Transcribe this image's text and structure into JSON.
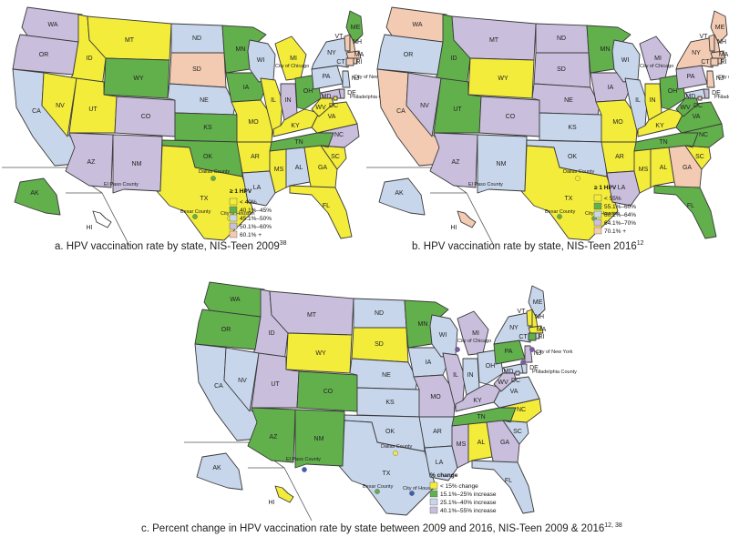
{
  "colors": {
    "yellow": "#f4ec3a",
    "green": "#62b04c",
    "lightblue": "#c8d6ec",
    "lavender": "#c9bedc",
    "peach": "#f3cbb3",
    "white": "#ffffff",
    "bluedot": "#3d5fb0",
    "greendot": "#62b04c",
    "purpledot": "#7a5aa8"
  },
  "maps": [
    {
      "id": "a",
      "caption": "a. HPV vaccination rate by state, NIS-Teen 2009",
      "caption_ref": "38",
      "legend": {
        "title": "≥ 1 HPV",
        "items": [
          {
            "label": "< 40%",
            "color": "#f4ec3a"
          },
          {
            "label": "40.1%–45%",
            "color": "#62b04c"
          },
          {
            "label": "45.1%–50%",
            "color": "#c8d6ec"
          },
          {
            "label": "50.1%–60%",
            "color": "#c9bedc"
          },
          {
            "label": "60.1% +",
            "color": "#f3cbb3"
          }
        ]
      },
      "cities": {
        "chicago": "City of Chicago",
        "newyork": "City of New York",
        "philadelphia": "Philadelphia County",
        "elpaso": "El Paso County",
        "dallas": "Dallas County",
        "bexar": "Bexar County",
        "houston": "City of Houston"
      },
      "states": {
        "WA": "lavender",
        "OR": "lavender",
        "CA": "lightblue",
        "ID": "yellow",
        "NV": "yellow",
        "MT": "yellow",
        "WY": "green",
        "UT": "yellow",
        "AZ": "lavender",
        "CO": "lavender",
        "NM": "lavender",
        "ND": "lightblue",
        "SD": "peach",
        "NE": "lightblue",
        "KS": "green",
        "OK": "green",
        "TX": "yellow",
        "MN": "green",
        "IA": "green",
        "MO": "yellow",
        "AR": "yellow",
        "LA": "lightblue",
        "WI": "lightblue",
        "IL": "yellow",
        "MI": "yellow",
        "IN": "lavender",
        "OH": "green",
        "KY": "yellow",
        "TN": "green",
        "MS": "yellow",
        "AL": "lightblue",
        "GA": "yellow",
        "FL": "yellow",
        "SC": "yellow",
        "NC": "lavender",
        "VA": "yellow",
        "WV": "yellow",
        "PA": "lightblue",
        "NY": "lightblue",
        "ME": "green",
        "VT": "peach",
        "NH": "peach",
        "MA": "peach",
        "CT": "peach",
        "RI": "peach",
        "NJ": "lightblue",
        "DE": "lavender",
        "MD": "lavender",
        "DC": "yellow",
        "AK": "green",
        "HI": "white"
      }
    },
    {
      "id": "b",
      "caption": "b. HPV vaccination rate by state, NIS-Teen 2016",
      "caption_ref": "12",
      "legend": {
        "title": "≥ 1 HPV",
        "items": [
          {
            "label": "< 55%",
            "color": "#f4ec3a"
          },
          {
            "label": "55.1%–60%",
            "color": "#62b04c"
          },
          {
            "label": "60.1%–64%",
            "color": "#c8d6ec"
          },
          {
            "label": "64.1%–70%",
            "color": "#c9bedc"
          },
          {
            "label": "70.1% +",
            "color": "#f3cbb3"
          }
        ]
      },
      "cities": {
        "chicago": "City of Chicago",
        "newyork": "City of New York",
        "philadelphia": "Philadelphia County",
        "elpaso": "El Paso County",
        "dallas": "Dallas County",
        "bexar": "Bexar County",
        "houston": "City of Houston"
      },
      "states": {
        "WA": "peach",
        "OR": "lightblue",
        "CA": "peach",
        "ID": "green",
        "NV": "lavender",
        "MT": "lavender",
        "WY": "yellow",
        "UT": "green",
        "AZ": "lavender",
        "CO": "lavender",
        "NM": "lightblue",
        "ND": "lavender",
        "SD": "lavender",
        "NE": "lavender",
        "KS": "lightblue",
        "OK": "lightblue",
        "TX": "yellow",
        "MN": "green",
        "IA": "lavender",
        "MO": "yellow",
        "AR": "yellow",
        "LA": "lavender",
        "WI": "lightblue",
        "IL": "lightblue",
        "MI": "lavender",
        "IN": "yellow",
        "OH": "green",
        "KY": "yellow",
        "TN": "green",
        "MS": "yellow",
        "AL": "yellow",
        "GA": "peach",
        "FL": "green",
        "SC": "yellow",
        "NC": "green",
        "VA": "green",
        "WV": "green",
        "PA": "lavender",
        "NY": "peach",
        "ME": "peach",
        "VT": "peach",
        "NH": "peach",
        "MA": "peach",
        "CT": "peach",
        "RI": "peach",
        "NJ": "peach",
        "DE": "lavender",
        "MD": "lightblue",
        "DC": "peach",
        "AK": "lightblue",
        "HI": "peach"
      }
    },
    {
      "id": "c",
      "caption": "c. Percent change in HPV vaccination rate by state between 2009 and 2016, NIS-Teen 2009 & 2016",
      "caption_ref": "12, 38",
      "legend": {
        "title": "% change",
        "items": [
          {
            "label": "< 15% change",
            "color": "#f4ec3a"
          },
          {
            "label": "15.1%–25% increase",
            "color": "#62b04c"
          },
          {
            "label": "25.1%–40% increase",
            "color": "#c8d6ec"
          },
          {
            "label": "40.1%–55% increase",
            "color": "#c9bedc"
          }
        ]
      },
      "cities": {
        "chicago": "City of Chicago",
        "newyork": "City of New York",
        "philadelphia": "Philadelphia County",
        "elpaso": "El Paso County",
        "dallas": "Dallas County",
        "bexar": "Bexar County",
        "houston": "City of Houston"
      },
      "states": {
        "WA": "green",
        "OR": "green",
        "CA": "lightblue",
        "ID": "lavender",
        "NV": "lightblue",
        "MT": "lavender",
        "WY": "yellow",
        "UT": "lavender",
        "AZ": "green",
        "CO": "green",
        "NM": "green",
        "ND": "lightblue",
        "SD": "yellow",
        "NE": "lightblue",
        "KS": "lightblue",
        "OK": "lightblue",
        "TX": "lightblue",
        "MN": "green",
        "IA": "lightblue",
        "MO": "lavender",
        "AR": "lightblue",
        "LA": "lightblue",
        "WI": "lightblue",
        "IL": "lavender",
        "MI": "lavender",
        "IN": "lightblue",
        "OH": "lightblue",
        "KY": "lavender",
        "TN": "green",
        "MS": "lavender",
        "AL": "yellow",
        "GA": "lavender",
        "FL": "lightblue",
        "SC": "lightblue",
        "NC": "yellow",
        "VA": "lightblue",
        "WV": "lavender",
        "PA": "green",
        "NY": "lightblue",
        "ME": "lightblue",
        "VT": "yellow",
        "NH": "yellow",
        "MA": "yellow",
        "CT": "green",
        "RI": "lightblue",
        "NJ": "lavender",
        "DE": "lightblue",
        "MD": "lightblue",
        "DC": "lightblue",
        "AK": "lightblue",
        "HI": "yellow"
      }
    }
  ]
}
